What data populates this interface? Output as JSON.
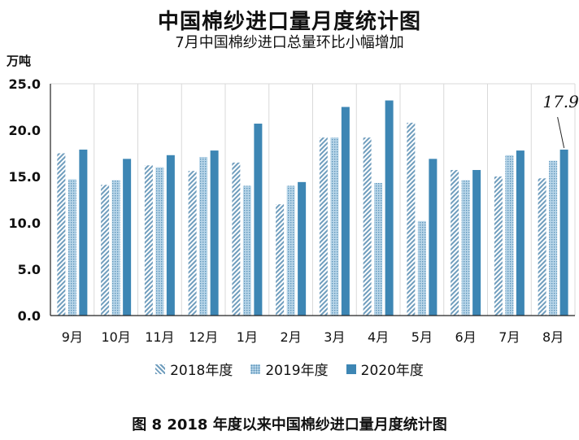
{
  "chart_data": {
    "type": "bar",
    "title": "中国棉纱进口量月度统计图",
    "subtitle": "7月中国棉纱进口总量环比小幅增加",
    "ylabel": "万吨",
    "caption": "图 8    2018 年度以来中国棉纱进口量月度统计图",
    "categories": [
      "9月",
      "10月",
      "11月",
      "12月",
      "1月",
      "2月",
      "3月",
      "4月",
      "5月",
      "6月",
      "7月",
      "8月"
    ],
    "ylim": [
      0,
      25
    ],
    "yticks": [
      "0.0",
      "5.0",
      "10.0",
      "15.0",
      "20.0",
      "25.0"
    ],
    "grid": true,
    "legend_position": "bottom",
    "series": [
      {
        "name": "2018年度",
        "values": [
          17.5,
          14.1,
          16.2,
          15.6,
          16.5,
          12.0,
          19.2,
          19.2,
          20.8,
          15.7,
          15.0,
          14.8
        ],
        "color": "#7fa9c4",
        "pattern": "hatch"
      },
      {
        "name": "2019年度",
        "values": [
          14.7,
          14.6,
          16.0,
          17.1,
          14.0,
          14.0,
          19.2,
          14.3,
          10.2,
          14.6,
          17.3,
          16.7
        ],
        "color": "#9cc3dc",
        "pattern": "dots"
      },
      {
        "name": "2020年度",
        "values": [
          17.9,
          16.9,
          17.3,
          17.8,
          20.7,
          14.4,
          22.5,
          23.2,
          16.9,
          15.7,
          17.8,
          17.9
        ],
        "color": "#3d86b4",
        "pattern": "solid"
      }
    ],
    "annotation": {
      "text": "17.9",
      "series": 2,
      "index": 11
    }
  }
}
